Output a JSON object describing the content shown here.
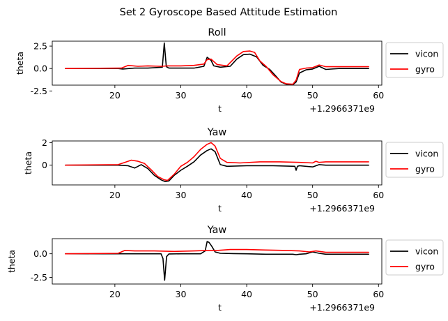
{
  "suptitle": "Set 2 Gyroscope Based Attitude Estimation",
  "colors": {
    "vicon": "#000000",
    "gyro": "#ff0000"
  },
  "chart_data": [
    {
      "type": "line",
      "title": "Roll",
      "xlabel": "t",
      "ylabel": "theta",
      "offset_text": "+1.2966371e9",
      "xlim": [
        10.5,
        60.5
      ],
      "ylim": [
        -1.85,
        3.05
      ],
      "xticks": [
        20,
        30,
        40,
        50,
        60
      ],
      "xtick_labels": [
        "20",
        "30",
        "40",
        "50",
        "60"
      ],
      "yticks": [
        -2.5,
        0.0,
        2.5
      ],
      "ytick_labels": [
        "-2.5",
        "0.0",
        "2.5"
      ],
      "legend": {
        "placement": "outside-right",
        "entries": [
          "vicon",
          "gyro"
        ]
      },
      "series": [
        {
          "name": "vicon",
          "color": "#000000",
          "x": [
            12.5,
            20.5,
            21.2,
            23.0,
            25.0,
            27.2,
            27.5,
            27.8,
            28.2,
            30.0,
            32.0,
            33.5,
            34.0,
            34.3,
            34.6,
            35.0,
            36.0,
            37.5,
            38.5,
            39.5,
            40.5,
            41.5,
            42.5,
            43.5,
            44.5,
            45.2,
            46.0,
            47.0,
            47.5,
            48.0,
            49.0,
            50.0,
            51.0,
            52.0,
            54.0,
            58.5
          ],
          "y": [
            0.0,
            0.0,
            -0.05,
            0.05,
            0.05,
            0.15,
            2.85,
            0.2,
            0.05,
            0.05,
            0.05,
            0.25,
            1.25,
            1.1,
            0.9,
            0.3,
            0.15,
            0.25,
            1.05,
            1.55,
            1.6,
            1.3,
            0.35,
            -0.1,
            -0.9,
            -1.5,
            -1.75,
            -1.8,
            -1.5,
            -0.5,
            -0.15,
            -0.05,
            0.25,
            -0.1,
            0.0,
            0.0
          ]
        },
        {
          "name": "gyro",
          "color": "#ff0000",
          "x": [
            12.5,
            21.0,
            22.0,
            23.5,
            25.0,
            27.0,
            28.0,
            30.0,
            32.0,
            33.5,
            34.0,
            34.6,
            35.5,
            37.0,
            38.5,
            39.5,
            40.5,
            41.2,
            42.0,
            43.0,
            44.0,
            45.2,
            46.0,
            47.0,
            47.5,
            48.0,
            49.0,
            50.0,
            51.0,
            52.0,
            54.0,
            58.5
          ],
          "y": [
            0.0,
            0.05,
            0.35,
            0.25,
            0.3,
            0.25,
            0.3,
            0.3,
            0.35,
            0.5,
            1.0,
            1.05,
            0.45,
            0.3,
            1.4,
            1.9,
            1.95,
            1.8,
            0.85,
            0.2,
            -0.7,
            -1.45,
            -1.7,
            -1.75,
            -1.3,
            -0.1,
            0.05,
            0.1,
            0.4,
            0.2,
            0.2,
            0.2
          ]
        }
      ]
    },
    {
      "type": "line",
      "title": "Yaw",
      "xlabel": "t",
      "ylabel": "theta",
      "offset_text": "+1.2966371e9",
      "xlim": [
        10.5,
        60.5
      ],
      "ylim": [
        -1.75,
        2.15
      ],
      "xticks": [
        20,
        30,
        40,
        50,
        60
      ],
      "xtick_labels": [
        "20",
        "30",
        "40",
        "50",
        "60"
      ],
      "yticks": [
        0,
        2
      ],
      "ytick_labels": [
        "0",
        "2"
      ],
      "legend": {
        "placement": "outside-right",
        "entries": [
          "vicon",
          "gyro"
        ]
      },
      "series": [
        {
          "name": "vicon",
          "color": "#000000",
          "x": [
            12.5,
            20.5,
            22.0,
            23.0,
            24.0,
            25.0,
            26.0,
            27.0,
            27.6,
            28.2,
            29.0,
            30.0,
            31.0,
            32.0,
            33.0,
            34.0,
            34.6,
            35.2,
            36.0,
            37.0,
            40.0,
            44.0,
            47.3,
            47.5,
            47.7,
            48.0,
            50.0,
            51.0,
            52.0,
            58.5
          ],
          "y": [
            0.0,
            0.0,
            -0.05,
            -0.25,
            0.05,
            -0.3,
            -0.9,
            -1.3,
            -1.45,
            -1.4,
            -0.9,
            -0.45,
            -0.1,
            0.3,
            0.9,
            1.3,
            1.45,
            1.2,
            0.05,
            -0.1,
            -0.05,
            -0.05,
            -0.1,
            -0.45,
            -0.1,
            -0.05,
            -0.15,
            0.05,
            0.0,
            0.0
          ]
        },
        {
          "name": "gyro",
          "color": "#ff0000",
          "x": [
            12.5,
            20.5,
            21.5,
            22.5,
            23.5,
            24.5,
            25.5,
            26.5,
            27.5,
            28.0,
            29.0,
            30.0,
            31.0,
            32.0,
            33.0,
            34.0,
            34.6,
            35.2,
            36.0,
            37.0,
            39.0,
            42.0,
            45.0,
            48.0,
            50.0,
            50.5,
            51.0,
            52.0,
            55.0,
            58.5
          ],
          "y": [
            0.0,
            0.05,
            0.25,
            0.45,
            0.35,
            0.15,
            -0.4,
            -1.0,
            -1.3,
            -1.35,
            -0.8,
            -0.1,
            0.25,
            0.75,
            1.4,
            1.85,
            2.0,
            1.7,
            0.6,
            0.25,
            0.2,
            0.3,
            0.3,
            0.25,
            0.2,
            0.35,
            0.25,
            0.3,
            0.3,
            0.3
          ]
        }
      ]
    },
    {
      "type": "line",
      "title": "Yaw",
      "xlabel": "t",
      "ylabel": "theta",
      "offset_text": "+1.2966371e9",
      "xlim": [
        10.5,
        60.5
      ],
      "ylim": [
        -3.2,
        1.6
      ],
      "xticks": [
        20,
        30,
        40,
        50,
        60
      ],
      "xtick_labels": [
        "20",
        "30",
        "40",
        "50",
        "60"
      ],
      "yticks": [
        -2.5,
        0.0
      ],
      "ytick_labels": [
        "-2.5",
        "0.0"
      ],
      "legend": {
        "placement": "outside-right",
        "entries": [
          "vicon",
          "gyro"
        ]
      },
      "series": [
        {
          "name": "vicon",
          "color": "#000000",
          "x": [
            12.5,
            20.5,
            22.0,
            25.0,
            27.0,
            27.3,
            27.55,
            27.85,
            28.2,
            30.0,
            32.0,
            33.0,
            33.7,
            34.0,
            34.3,
            34.7,
            35.2,
            36.0,
            38.0,
            40.0,
            43.0,
            45.0,
            47.0,
            47.5,
            48.0,
            49.0,
            50.0,
            51.0,
            52.0,
            54.0,
            58.5
          ],
          "y": [
            0.0,
            0.0,
            0.0,
            0.0,
            0.0,
            -0.5,
            -2.8,
            -0.3,
            -0.02,
            0.0,
            0.0,
            0.0,
            0.3,
            1.3,
            1.2,
            0.8,
            0.2,
            0.05,
            0.02,
            0.0,
            -0.05,
            -0.05,
            -0.05,
            -0.1,
            -0.05,
            0.0,
            0.2,
            0.05,
            -0.05,
            -0.05,
            -0.05
          ]
        },
        {
          "name": "gyro",
          "color": "#ff0000",
          "x": [
            12.5,
            20.5,
            21.5,
            23.0,
            26.0,
            29.0,
            32.0,
            34.0,
            35.5,
            37.5,
            40.0,
            43.0,
            46.0,
            48.0,
            49.5,
            50.5,
            52.0,
            55.0,
            58.5
          ],
          "y": [
            0.0,
            0.05,
            0.35,
            0.3,
            0.3,
            0.25,
            0.3,
            0.35,
            0.35,
            0.45,
            0.45,
            0.4,
            0.35,
            0.3,
            0.2,
            0.3,
            0.15,
            0.15,
            0.15
          ]
        }
      ]
    }
  ]
}
